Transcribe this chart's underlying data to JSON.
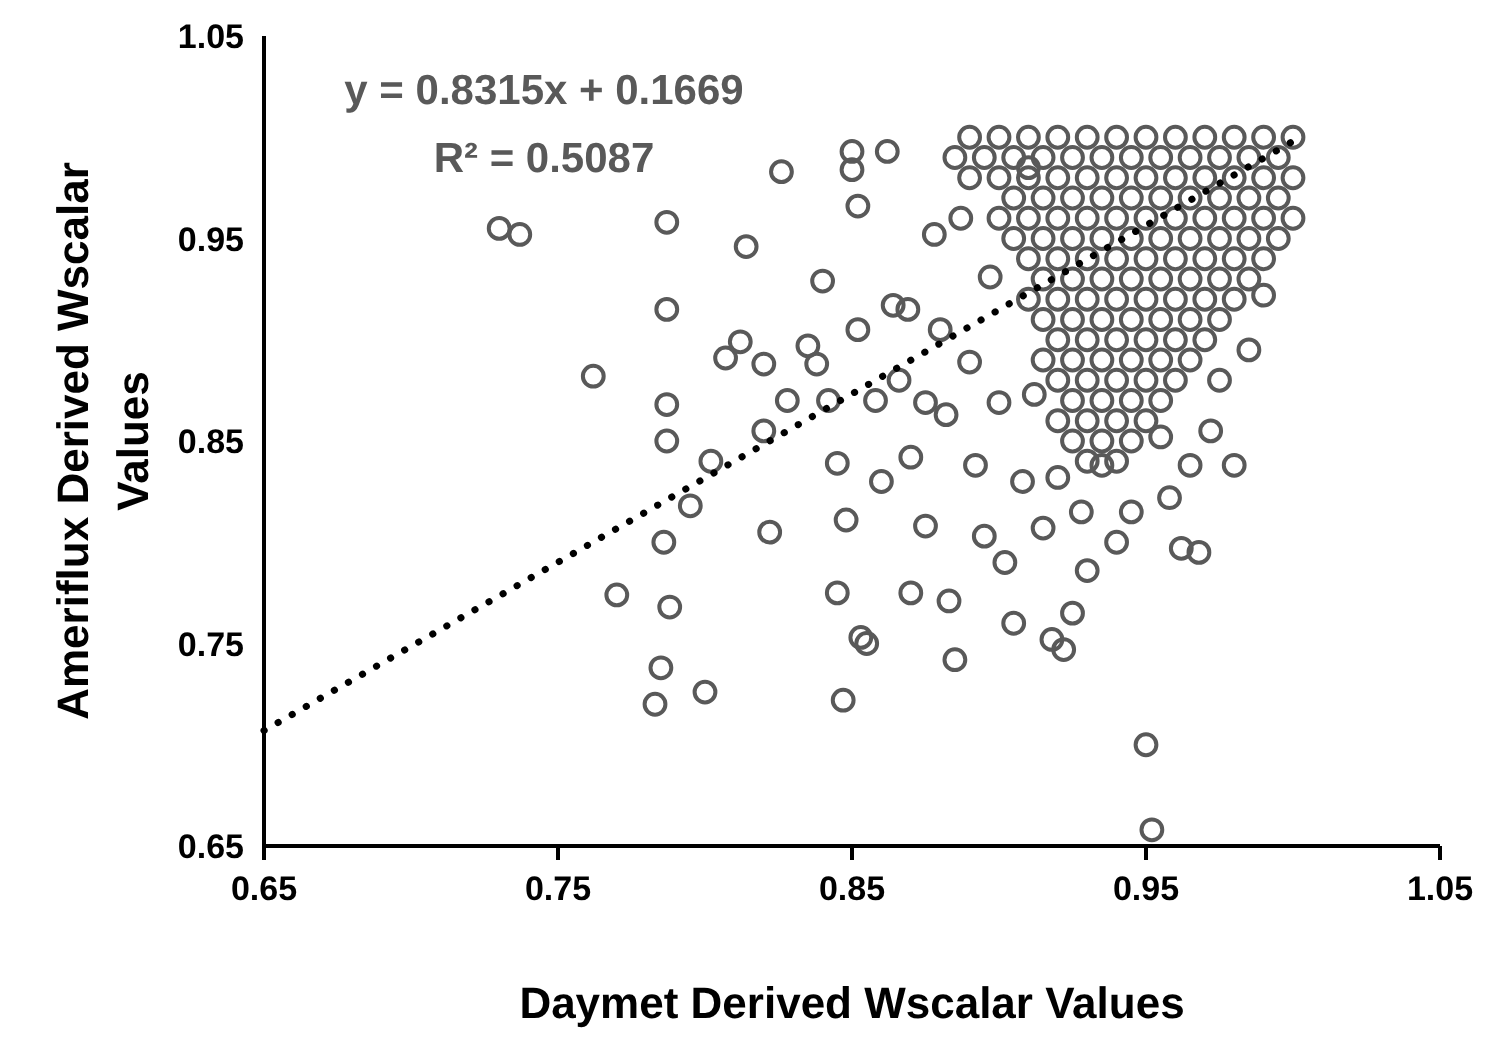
{
  "chart_data": {
    "type": "scatter",
    "xlabel": "Daymet Derived Wscalar Values",
    "ylabel": "Ameriflux Derived Wscalar Values",
    "xlim": [
      0.65,
      1.05
    ],
    "ylim": [
      0.65,
      1.05
    ],
    "xticks": [
      0.65,
      0.75,
      0.85,
      0.95,
      1.05
    ],
    "yticks": [
      0.65,
      0.75,
      0.85,
      0.95,
      1.05
    ],
    "grid": false,
    "annotations": [
      "y = 0.8315x + 0.1669",
      "R² = 0.5087"
    ],
    "series": [
      {
        "color": "#595959",
        "marker": "circle",
        "x": [
          0.73,
          0.737,
          0.762,
          0.77,
          0.783,
          0.785,
          0.786,
          0.787,
          0.787,
          0.787,
          0.787,
          0.788,
          0.795,
          0.8,
          0.802,
          0.807,
          0.812,
          0.814,
          0.82,
          0.82,
          0.822,
          0.826,
          0.828,
          0.835,
          0.838,
          0.84,
          0.842,
          0.845,
          0.845,
          0.847,
          0.848,
          0.85,
          0.85,
          0.852,
          0.852,
          0.853,
          0.855,
          0.858,
          0.86,
          0.862,
          0.864,
          0.866,
          0.869,
          0.87,
          0.87,
          0.875,
          0.875,
          0.878,
          0.88,
          0.882,
          0.883,
          0.885,
          0.887,
          0.89,
          0.892,
          0.895,
          0.897,
          0.9,
          0.902,
          0.905,
          0.908,
          0.91,
          0.912,
          0.915,
          0.918,
          0.92,
          0.922,
          0.925,
          0.928,
          0.93,
          0.935,
          0.94,
          0.945,
          0.95,
          0.952,
          0.955,
          0.958,
          0.962,
          0.965,
          0.968,
          0.972,
          0.975,
          0.98,
          0.99,
          0.985,
          0.89,
          0.9,
          0.91,
          0.92,
          0.93,
          0.94,
          0.95,
          0.96,
          0.97,
          0.98,
          0.99,
          1.0,
          0.885,
          0.895,
          0.905,
          0.915,
          0.925,
          0.935,
          0.945,
          0.955,
          0.965,
          0.975,
          0.985,
          0.995,
          0.89,
          0.9,
          0.91,
          0.92,
          0.93,
          0.94,
          0.95,
          0.96,
          0.97,
          0.98,
          0.99,
          1.0,
          0.905,
          0.915,
          0.925,
          0.935,
          0.945,
          0.955,
          0.965,
          0.975,
          0.985,
          0.995,
          0.9,
          0.91,
          0.92,
          0.93,
          0.94,
          0.95,
          0.96,
          0.97,
          0.98,
          0.99,
          1.0,
          0.905,
          0.915,
          0.925,
          0.935,
          0.945,
          0.955,
          0.965,
          0.975,
          0.985,
          0.995,
          0.91,
          0.92,
          0.93,
          0.94,
          0.95,
          0.96,
          0.97,
          0.98,
          0.99,
          0.915,
          0.925,
          0.935,
          0.945,
          0.955,
          0.965,
          0.975,
          0.985,
          0.91,
          0.92,
          0.93,
          0.94,
          0.95,
          0.96,
          0.97,
          0.98,
          0.915,
          0.925,
          0.935,
          0.945,
          0.955,
          0.965,
          0.975,
          0.92,
          0.93,
          0.94,
          0.95,
          0.96,
          0.97,
          0.915,
          0.925,
          0.935,
          0.945,
          0.955,
          0.965,
          0.92,
          0.93,
          0.94,
          0.95,
          0.96,
          0.925,
          0.935,
          0.945,
          0.955,
          0.92,
          0.93,
          0.94,
          0.95,
          0.925,
          0.935,
          0.945,
          0.93,
          0.94
        ],
        "values": [
          0.955,
          0.952,
          0.882,
          0.774,
          0.72,
          0.738,
          0.8,
          0.958,
          0.915,
          0.868,
          0.85,
          0.768,
          0.818,
          0.726,
          0.84,
          0.891,
          0.899,
          0.946,
          0.888,
          0.855,
          0.805,
          0.983,
          0.87,
          0.897,
          0.888,
          0.929,
          0.87,
          0.839,
          0.775,
          0.722,
          0.811,
          0.993,
          0.984,
          0.966,
          0.905,
          0.753,
          0.75,
          0.87,
          0.83,
          0.993,
          0.917,
          0.88,
          0.915,
          0.842,
          0.775,
          0.869,
          0.808,
          0.952,
          0.905,
          0.863,
          0.771,
          0.742,
          0.96,
          0.889,
          0.838,
          0.803,
          0.931,
          0.869,
          0.79,
          0.76,
          0.83,
          0.985,
          0.873,
          0.807,
          0.752,
          0.832,
          0.747,
          0.765,
          0.815,
          0.786,
          0.838,
          0.8,
          0.815,
          0.7,
          0.658,
          0.852,
          0.822,
          0.797,
          0.838,
          0.795,
          0.855,
          0.88,
          0.838,
          0.922,
          0.895,
          1,
          1,
          1,
          1,
          1,
          1,
          1,
          1,
          1,
          1,
          1,
          1,
          0.99,
          0.99,
          0.99,
          0.99,
          0.99,
          0.99,
          0.99,
          0.99,
          0.99,
          0.99,
          0.99,
          0.99,
          0.98,
          0.98,
          0.98,
          0.98,
          0.98,
          0.98,
          0.98,
          0.98,
          0.98,
          0.98,
          0.98,
          0.98,
          0.97,
          0.97,
          0.97,
          0.97,
          0.97,
          0.97,
          0.97,
          0.97,
          0.97,
          0.97,
          0.96,
          0.96,
          0.96,
          0.96,
          0.96,
          0.96,
          0.96,
          0.96,
          0.96,
          0.96,
          0.96,
          0.95,
          0.95,
          0.95,
          0.95,
          0.95,
          0.95,
          0.95,
          0.95,
          0.95,
          0.95,
          0.94,
          0.94,
          0.94,
          0.94,
          0.94,
          0.94,
          0.94,
          0.94,
          0.94,
          0.93,
          0.93,
          0.93,
          0.93,
          0.93,
          0.93,
          0.93,
          0.93,
          0.92,
          0.92,
          0.92,
          0.92,
          0.92,
          0.92,
          0.92,
          0.92,
          0.91,
          0.91,
          0.91,
          0.91,
          0.91,
          0.91,
          0.91,
          0.9,
          0.9,
          0.9,
          0.9,
          0.9,
          0.9,
          0.89,
          0.89,
          0.89,
          0.89,
          0.89,
          0.89,
          0.88,
          0.88,
          0.88,
          0.88,
          0.88,
          0.87,
          0.87,
          0.87,
          0.87,
          0.86,
          0.86,
          0.86,
          0.86,
          0.85,
          0.85,
          0.85,
          0.84,
          0.84
        ]
      },
      {
        "type": "line",
        "color": "#000000",
        "line_style": "dotted",
        "marker": "none",
        "x": [
          0.65,
          1.0
        ],
        "values": [
          0.707,
          0.998
        ]
      }
    ]
  }
}
